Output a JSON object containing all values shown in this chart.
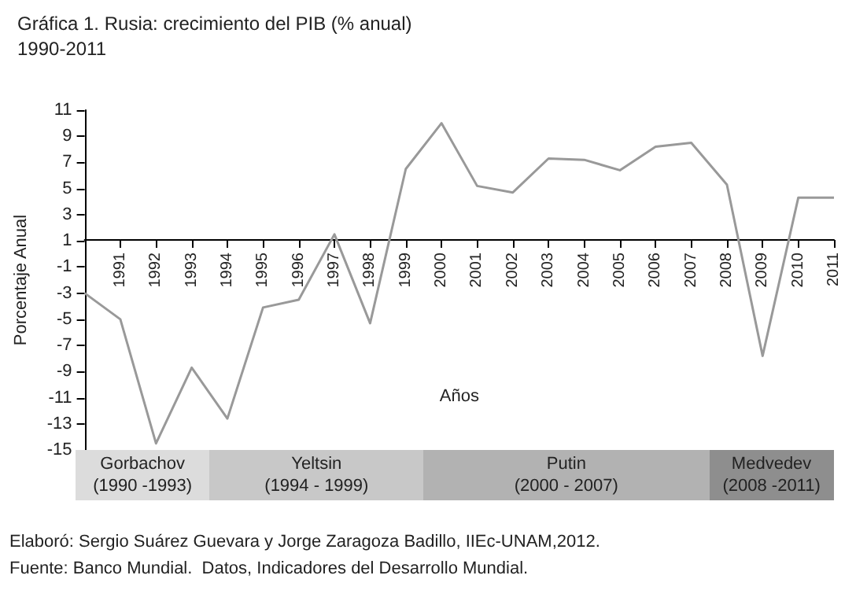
{
  "chart_data": {
    "type": "line",
    "title": "Gráfica 1. Rusia: crecimiento del PIB (% anual)",
    "subtitle": "1990-2011",
    "xlabel": "Años",
    "ylabel": "Porcentaje Anual",
    "categories": [
      null,
      "1991",
      "1992",
      "1993",
      "1994",
      "1995",
      "1996",
      "1997",
      "1998",
      "1999",
      "2000",
      "2001",
      "2002",
      "2003",
      "2004",
      "2005",
      "2006",
      "2007",
      "2008",
      "2009",
      "2010",
      "2011"
    ],
    "series": [
      {
        "color": "#999999",
        "values": [
          -3.0,
          -5.0,
          -14.5,
          -8.7,
          -12.6,
          -4.1,
          -3.5,
          1.5,
          -5.3,
          6.5,
          10.0,
          5.2,
          4.7,
          7.3,
          7.2,
          6.4,
          8.2,
          8.5,
          5.3,
          -7.8,
          4.3,
          4.3
        ]
      }
    ],
    "ylim": [
      -15,
      11
    ],
    "yticks": [
      -15,
      -13,
      -11,
      -9,
      -7,
      -5,
      -3,
      -1,
      1,
      3,
      5,
      7,
      9,
      11
    ],
    "annotations": [
      "Gorbachov\n(1990 -1993)",
      "Yeltsin\n(1994 - 1999)",
      "Putin\n(2000 - 2007)",
      "Medvedev\n(2008 -2011)",
      "Elaboró: Sergio Suárez Guevara y Jorge Zaragoza Badillo, IIEc-UNAM,2012.",
      "Fuente: Banco Mundial.  Datos, Indicadores del Desarrollo Mundial."
    ],
    "grid": false,
    "marker": "none",
    "line_style": "solid"
  }
}
